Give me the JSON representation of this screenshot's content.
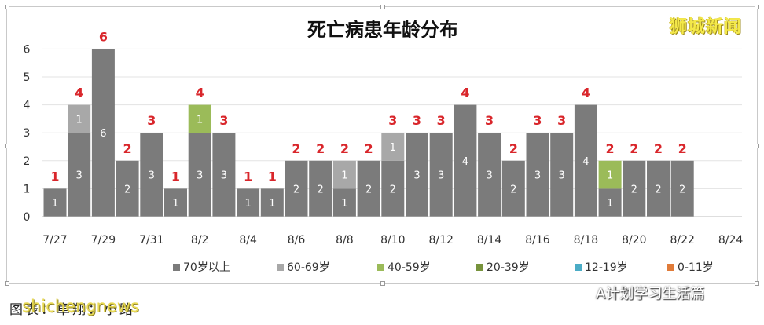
{
  "watermark": "狮城新闻",
  "caption": "图表：卓翔：小路",
  "watermark_en": "shichengnews",
  "source": {
    "icon": "wechat-icon",
    "label": "A计划学习生活篇"
  },
  "chart_data": {
    "type": "bar",
    "stacked": true,
    "title": "死亡病患年龄分布",
    "xlabel": "",
    "ylabel": "",
    "ylim": [
      0,
      6
    ],
    "yticks": [
      "0",
      "1",
      "2",
      "3",
      "4",
      "5",
      "6"
    ],
    "grid": true,
    "legend_position": "bottom",
    "categories": [
      "7/27",
      "7/28",
      "7/29",
      "7/30",
      "7/31",
      "8/1",
      "8/2",
      "8/3",
      "8/4",
      "8/5",
      "8/6",
      "8/7",
      "8/8",
      "8/9",
      "8/10",
      "8/11",
      "8/12",
      "8/13",
      "8/14",
      "8/15",
      "8/16",
      "8/17",
      "8/18",
      "8/19",
      "8/20",
      "8/21",
      "8/22",
      "8/23",
      "8/24"
    ],
    "tick_labels": [
      "7/27",
      "7/29",
      "7/31",
      "8/2",
      "8/4",
      "8/6",
      "8/8",
      "8/10",
      "8/12",
      "8/14",
      "8/16",
      "8/18",
      "8/20",
      "8/22",
      "8/24"
    ],
    "series": [
      {
        "name": "70岁以上",
        "color": "#7b7b7b",
        "values": [
          1,
          3,
          6,
          2,
          3,
          1,
          3,
          3,
          1,
          1,
          2,
          2,
          1,
          2,
          2,
          3,
          3,
          4,
          3,
          2,
          3,
          3,
          4,
          1,
          2,
          2,
          2,
          0,
          0
        ]
      },
      {
        "name": "60-69岁",
        "color": "#a8a8a8",
        "values": [
          0,
          1,
          0,
          0,
          0,
          0,
          0,
          0,
          0,
          0,
          0,
          0,
          1,
          0,
          1,
          0,
          0,
          0,
          0,
          0,
          0,
          0,
          0,
          0,
          0,
          0,
          0,
          0,
          0
        ]
      },
      {
        "name": "40-59岁",
        "color": "#9bbb59",
        "values": [
          0,
          0,
          0,
          0,
          0,
          0,
          1,
          0,
          0,
          0,
          0,
          0,
          0,
          0,
          0,
          0,
          0,
          0,
          0,
          0,
          0,
          0,
          0,
          1,
          0,
          0,
          0,
          0,
          0
        ]
      },
      {
        "name": "20-39岁",
        "color": "#77933c",
        "values": [
          0,
          0,
          0,
          0,
          0,
          0,
          0,
          0,
          0,
          0,
          0,
          0,
          0,
          0,
          0,
          0,
          0,
          0,
          0,
          0,
          0,
          0,
          0,
          0,
          0,
          0,
          0,
          0,
          0
        ]
      },
      {
        "name": "12-19岁",
        "color": "#4bacc6",
        "values": [
          0,
          0,
          0,
          0,
          0,
          0,
          0,
          0,
          0,
          0,
          0,
          0,
          0,
          0,
          0,
          0,
          0,
          0,
          0,
          0,
          0,
          0,
          0,
          0,
          0,
          0,
          0,
          0,
          0
        ]
      },
      {
        "name": "0-11岁",
        "color": "#e07b39",
        "values": [
          0,
          0,
          0,
          0,
          0,
          0,
          0,
          0,
          0,
          0,
          0,
          0,
          0,
          0,
          0,
          0,
          0,
          0,
          0,
          0,
          0,
          0,
          0,
          0,
          0,
          0,
          0,
          0,
          0
        ]
      }
    ],
    "totals": [
      1,
      4,
      6,
      2,
      3,
      1,
      4,
      3,
      1,
      1,
      2,
      2,
      2,
      2,
      3,
      3,
      3,
      4,
      3,
      2,
      3,
      3,
      4,
      2,
      2,
      2,
      2,
      0,
      0
    ],
    "total_label_color": "#d9262b"
  }
}
